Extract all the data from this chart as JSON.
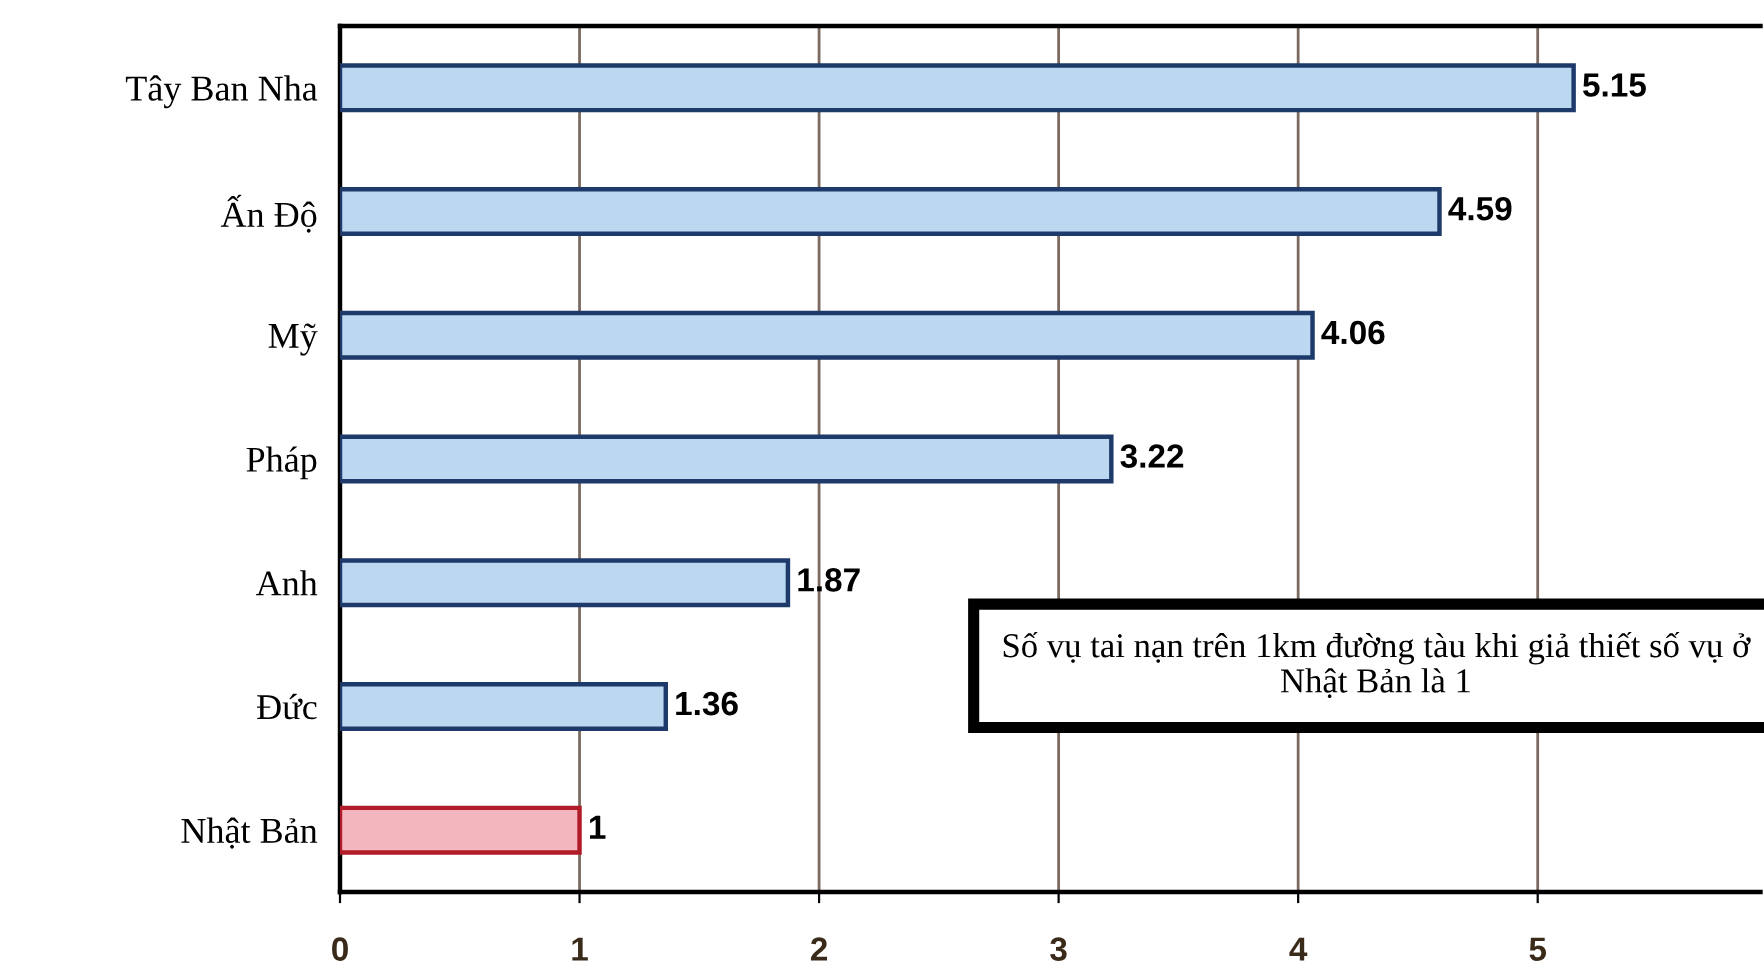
{
  "chart_data": {
    "type": "bar",
    "orientation": "horizontal",
    "categories": [
      "Tây Ban Nha",
      "Ấn Độ",
      "Mỹ",
      "Pháp",
      "Anh",
      "Đức",
      "Nhật Bản"
    ],
    "values": [
      5.15,
      4.59,
      4.06,
      3.22,
      1.87,
      1.36,
      1
    ],
    "colors": [
      "#bcd8f0",
      "#bcd8f0",
      "#bcd8f0",
      "#bcd8f0",
      "#bcd8f0",
      "#bcd8f0",
      "#f4b6be"
    ],
    "xlim": [
      0,
      5.93
    ],
    "xticks": [
      0,
      1,
      2,
      3,
      4,
      5
    ],
    "grid": "x",
    "data_labels": true,
    "annotations": [
      "Số vụ tai nạn trên 1km đường tàu khi giả thiết số vụ ở Nhật Bản là 1"
    ]
  }
}
